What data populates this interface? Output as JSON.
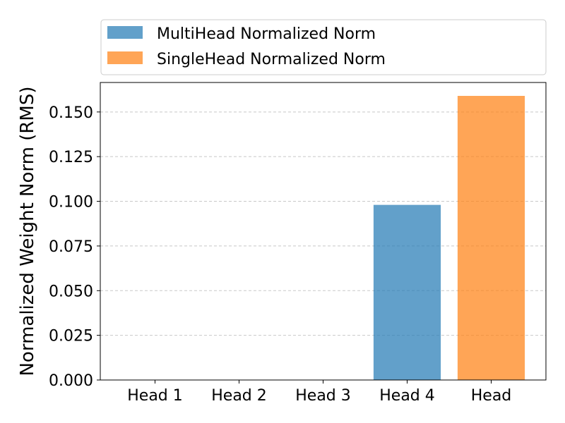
{
  "chart_data": {
    "type": "bar",
    "title": "",
    "xlabel": "",
    "ylabel": "Normalized Weight Norm (RMS)",
    "categories": [
      "Head 1",
      "Head 2",
      "Head 3",
      "Head 4",
      "Head"
    ],
    "series": [
      {
        "name": "MultiHead Normalized Norm",
        "color": "#1f77b4",
        "values": [
          0,
          0,
          0,
          0.098,
          0
        ]
      },
      {
        "name": "SingleHead Normalized Norm",
        "color": "#ff7f0e",
        "values": [
          0,
          0,
          0,
          0,
          0.159
        ]
      }
    ],
    "ylim": [
      0,
      0.1665
    ],
    "yticks": [
      0.0,
      0.025,
      0.05,
      0.075,
      0.1,
      0.125,
      0.15
    ],
    "ytick_labels": [
      "0.000",
      "0.025",
      "0.050",
      "0.075",
      "0.100",
      "0.125",
      "0.150"
    ],
    "grid": {
      "y": true,
      "x": false,
      "style": "dashed"
    },
    "legend": {
      "position": "top",
      "entries": [
        "MultiHead Normalized Norm",
        "SingleHead Normalized Norm"
      ]
    },
    "bar_opacity": 0.7
  }
}
